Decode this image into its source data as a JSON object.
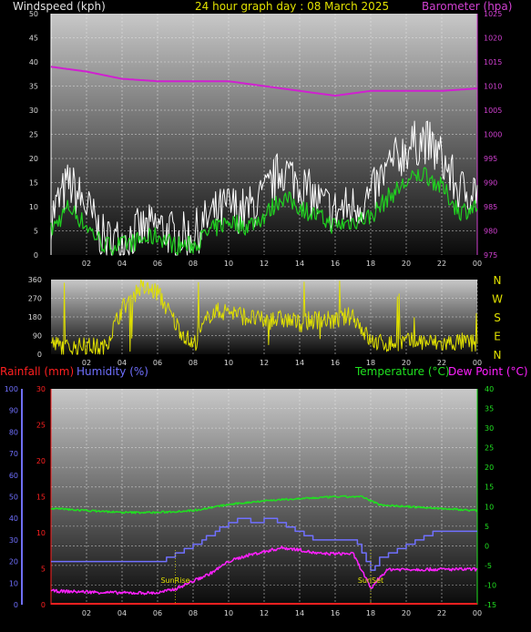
{
  "top": {
    "left_title": "Windspeed (kph)",
    "center_title": "24 hour graph day : 08 March 2025",
    "right_title": "Barometer (hpa)",
    "colors": {
      "left_title": "#e0e0e0",
      "center_title": "#e0e000",
      "right_title": "#d040d0"
    }
  },
  "bottom": {
    "rain_title": "Rainfall (mm)",
    "hum_title": "Humidity (%)",
    "temp_title": "Temperature (°C)",
    "dew_title": "Dew Point (°C)",
    "colors": {
      "rain": "#ff2020",
      "hum": "#7070ff",
      "temp": "#20e020",
      "dew": "#ff20ff"
    }
  },
  "chart_data": [
    {
      "type": "line",
      "title": "24 hour graph day : 08 March 2025",
      "x_ticks": [
        "02",
        "04",
        "06",
        "08",
        "10",
        "12",
        "14",
        "16",
        "18",
        "20",
        "22",
        "00"
      ],
      "y_left_label": "Windspeed (kph)",
      "y_left_range": [
        0,
        50
      ],
      "y_left_ticks": [
        0,
        5,
        10,
        15,
        20,
        25,
        30,
        35,
        40,
        45,
        50
      ],
      "y_right_label": "Barometer (hpa)",
      "y_right_range": [
        975,
        1025
      ],
      "y_right_ticks": [
        975,
        980,
        985,
        990,
        995,
        1000,
        1005,
        1010,
        1015,
        1020,
        1025
      ],
      "grid": true,
      "series": [
        {
          "name": "Barometer",
          "color": "#d020d0",
          "x": [
            0,
            2,
            4,
            6,
            8,
            10,
            12,
            14,
            16,
            18,
            20,
            22,
            24
          ],
          "values": [
            1014,
            1013,
            1011.5,
            1011,
            1011,
            1011,
            1010,
            1009,
            1008,
            1009,
            1009,
            1009,
            1009.5
          ]
        },
        {
          "name": "Gust",
          "color": "#ffffff",
          "x": [
            0,
            1,
            2,
            3,
            4,
            5,
            6,
            7,
            8,
            9,
            10,
            11,
            12,
            13,
            14,
            15,
            16,
            17,
            18,
            19,
            20,
            21,
            22,
            23,
            24
          ],
          "values": [
            8,
            15,
            10,
            3,
            3,
            5,
            6,
            4,
            4,
            8,
            10,
            9,
            12,
            18,
            15,
            11,
            9,
            10,
            12,
            18,
            22,
            24,
            20,
            13,
            14
          ]
        },
        {
          "name": "Average speed",
          "color": "#20d020",
          "x": [
            0,
            1,
            2,
            3,
            4,
            5,
            6,
            7,
            8,
            9,
            10,
            11,
            12,
            13,
            14,
            15,
            16,
            17,
            18,
            19,
            20,
            21,
            22,
            23,
            24
          ],
          "values": [
            5,
            10,
            6,
            2,
            2,
            3,
            4,
            2,
            2,
            5,
            7,
            6,
            8,
            12,
            10,
            8,
            6,
            7,
            8,
            12,
            15,
            17,
            14,
            9,
            10
          ]
        }
      ]
    },
    {
      "type": "line",
      "title": "",
      "x_ticks": [
        "02",
        "04",
        "06",
        "08",
        "10",
        "12",
        "14",
        "16",
        "18",
        "20",
        "22",
        "00"
      ],
      "y_range": [
        0,
        360
      ],
      "y_ticks": [
        0,
        90,
        180,
        270,
        360
      ],
      "right_labels": [
        "N",
        "W",
        "S",
        "E",
        "N"
      ],
      "grid": true,
      "series": [
        {
          "name": "Wind direction",
          "color": "#e0e000",
          "x": [
            0,
            1,
            2,
            3,
            4,
            5,
            6,
            7,
            8,
            9,
            10,
            11,
            12,
            13,
            14,
            15,
            16,
            17,
            18,
            19,
            20,
            21,
            22,
            23,
            24
          ],
          "values": [
            50,
            30,
            40,
            30,
            220,
            320,
            300,
            150,
            40,
            200,
            210,
            180,
            160,
            170,
            150,
            170,
            160,
            190,
            60,
            50,
            60,
            60,
            50,
            60,
            50
          ]
        }
      ]
    },
    {
      "type": "line",
      "title": "",
      "x_ticks": [
        "02",
        "04",
        "06",
        "08",
        "10",
        "12",
        "14",
        "16",
        "18",
        "20",
        "22",
        "00"
      ],
      "y_humidity_range": [
        0,
        100
      ],
      "y_humidity_ticks": [
        0,
        10,
        20,
        30,
        40,
        50,
        60,
        70,
        80,
        90,
        100
      ],
      "y_rain_range": [
        0,
        30
      ],
      "y_rain_ticks": [
        0,
        5,
        10,
        15,
        20,
        25,
        30
      ],
      "y_temp_range": [
        -15,
        40
      ],
      "y_temp_ticks": [
        -15,
        -10,
        -5,
        0,
        5,
        10,
        15,
        20,
        25,
        30,
        35,
        40
      ],
      "annotations": [
        {
          "x": 7,
          "text": "SunRise"
        },
        {
          "x": 18,
          "text": "SunSet"
        }
      ],
      "grid": true,
      "series": [
        {
          "name": "Temperature",
          "color": "#20e020",
          "x": [
            0,
            2,
            4,
            6,
            8,
            10,
            12,
            14,
            16,
            17.5,
            18.5,
            20,
            22,
            24
          ],
          "values": [
            9.5,
            9,
            8.5,
            8.5,
            9,
            10.5,
            11.5,
            12,
            12.5,
            12.5,
            10.5,
            10,
            9.5,
            9
          ]
        },
        {
          "name": "Humidity",
          "color": "#7070ff",
          "x": [
            0,
            6,
            7.5,
            8.5,
            9.5,
            10.5,
            11.5,
            12.5,
            13.5,
            15,
            17,
            17.7,
            18,
            18.5,
            19.5,
            20.5,
            21.5,
            24
          ],
          "values": [
            20,
            20,
            25,
            30,
            35,
            40,
            38,
            40,
            35,
            30,
            30,
            22,
            15,
            22,
            25,
            30,
            33,
            34
          ]
        },
        {
          "name": "Dew Point",
          "color": "#ff20ff",
          "x": [
            0,
            4,
            6,
            7,
            8,
            9,
            10,
            11,
            12,
            13,
            14,
            15,
            17,
            17.7,
            18,
            18.5,
            19,
            21,
            24
          ],
          "values": [
            -11.5,
            -12,
            -12,
            -11,
            -9,
            -7,
            -4,
            -2.5,
            -1.5,
            -0.5,
            -1,
            -2,
            -2,
            -8,
            -11,
            -8,
            -6,
            -6,
            -6
          ]
        },
        {
          "name": "Rainfall",
          "color": "#ff2020",
          "x": [
            0,
            24
          ],
          "values": [
            0,
            0
          ]
        }
      ]
    }
  ]
}
